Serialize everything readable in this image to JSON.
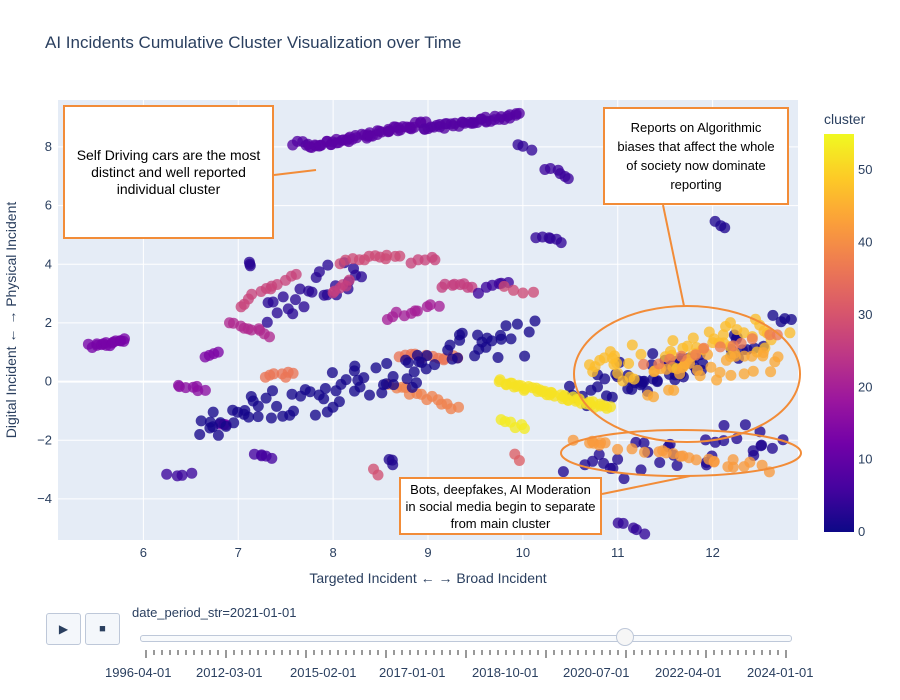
{
  "chart_data": {
    "type": "scatter",
    "title": "AI Incidents Cumulative Cluster Visualization over Time",
    "xlabel": "Targeted Incident ← → Broad Incident",
    "ylabel": "Digital Incident ← → Physical Incident",
    "xlim": [
      5.1,
      12.9
    ],
    "ylim": [
      -5.4,
      9.6
    ],
    "x_ticks": [
      6,
      7,
      8,
      9,
      10,
      11,
      12
    ],
    "y_ticks": [
      -4,
      -2,
      0,
      2,
      4,
      6,
      8
    ],
    "colorbar": {
      "title": "cluster",
      "range": [
        0,
        55
      ],
      "ticks": [
        0,
        10,
        20,
        30,
        40,
        50
      ]
    },
    "grid": true,
    "point_groups": [
      {
        "cluster": 13,
        "x": [
          5.45,
          5.8
        ],
        "y": [
          1.2,
          1.4
        ],
        "n": 16
      },
      {
        "cluster": 16,
        "x": [
          6.35,
          6.65
        ],
        "y": [
          -0.1,
          -0.3
        ],
        "n": 7
      },
      {
        "cluster": 5,
        "x": [
          6.25,
          6.5
        ],
        "y": [
          -3.1,
          -3.2
        ],
        "n": 4
      },
      {
        "cluster": 14,
        "x": [
          6.65,
          6.8
        ],
        "y": [
          0.9,
          1.0
        ],
        "n": 4
      },
      {
        "cluster": 12,
        "x": [
          6.8,
          6.85
        ],
        "y": [
          -1.4,
          -1.5
        ],
        "n": 3
      },
      {
        "cluster": 22,
        "x": [
          6.9,
          7.35
        ],
        "y": [
          2.0,
          1.6
        ],
        "n": 10
      },
      {
        "cluster": 27,
        "x": [
          7.0,
          7.6
        ],
        "y": [
          2.6,
          3.7
        ],
        "n": 12
      },
      {
        "cluster": 3,
        "x": [
          7.1,
          7.15
        ],
        "y": [
          4.05,
          3.95
        ],
        "n": 3
      },
      {
        "cluster": 6,
        "x": [
          7.2,
          7.35
        ],
        "y": [
          -2.55,
          -2.65
        ],
        "n": 5
      },
      {
        "cluster": 36,
        "x": [
          7.3,
          7.6
        ],
        "y": [
          0.2,
          0.25
        ],
        "n": 7
      },
      {
        "cluster": 8,
        "x": [
          7.55,
          7.75
        ],
        "y": [
          8.15,
          8.05
        ],
        "n": 5
      },
      {
        "cluster": 9,
        "x": [
          7.75,
          8.95
        ],
        "y": [
          8.0,
          8.8
        ],
        "n": 55
      },
      {
        "cluster": 8,
        "x": [
          8.95,
          9.95
        ],
        "y": [
          8.6,
          9.1
        ],
        "n": 40
      },
      {
        "cluster": 3,
        "x": [
          7.3,
          8.3
        ],
        "y": [
          2.5,
          3.9
        ],
        "n": 25
      },
      {
        "cluster": 28,
        "x": [
          8.1,
          8.7
        ],
        "y": [
          4.1,
          4.3
        ],
        "n": 12
      },
      {
        "cluster": 26,
        "x": [
          8.0,
          8.2
        ],
        "y": [
          3.1,
          3.4
        ],
        "n": 6
      },
      {
        "cluster": 20,
        "x": [
          8.55,
          9.1
        ],
        "y": [
          2.2,
          2.6
        ],
        "n": 10
      },
      {
        "cluster": 26,
        "x": [
          9.15,
          9.45
        ],
        "y": [
          3.25,
          3.25
        ],
        "n": 8
      },
      {
        "cluster": 27,
        "x": [
          8.8,
          9.1
        ],
        "y": [
          4.1,
          4.2
        ],
        "n": 5
      },
      {
        "cluster": 5,
        "x": [
          9.55,
          9.85
        ],
        "y": [
          3.1,
          3.4
        ],
        "n": 6
      },
      {
        "cluster": 28,
        "x": [
          9.8,
          10.1
        ],
        "y": [
          3.2,
          3.0
        ],
        "n": 4
      },
      {
        "cluster": 4,
        "x": [
          10.15,
          10.4
        ],
        "y": [
          4.95,
          4.8
        ],
        "n": 6
      },
      {
        "cluster": 5,
        "x": [
          10.25,
          10.5
        ],
        "y": [
          7.3,
          7.0
        ],
        "n": 6
      },
      {
        "cluster": 4,
        "x": [
          9.95,
          10.1
        ],
        "y": [
          8.1,
          7.9
        ],
        "n": 3
      },
      {
        "cluster": 2,
        "x": [
          12.05,
          12.15
        ],
        "y": [
          5.4,
          5.3
        ],
        "n": 3
      },
      {
        "cluster": 36,
        "x": [
          8.7,
          9.3
        ],
        "y": [
          0.9,
          0.8
        ],
        "n": 12
      },
      {
        "cluster": 38,
        "x": [
          8.6,
          9.3
        ],
        "y": [
          -0.1,
          -0.9
        ],
        "n": 14
      },
      {
        "cluster": 1,
        "x": [
          6.6,
          10.0
        ],
        "y": [
          -1.6,
          1.6
        ],
        "n": 90
      },
      {
        "cluster": 1,
        "x": [
          10.5,
          11.8
        ],
        "y": [
          -0.4,
          0.8
        ],
        "n": 30
      },
      {
        "cluster": 1,
        "x": [
          11.1,
          12.7
        ],
        "y": [
          -0.4,
          1.9
        ],
        "n": 35
      },
      {
        "cluster": 2,
        "x": [
          10.6,
          12.8
        ],
        "y": [
          -2.9,
          -1.7
        ],
        "n": 35
      },
      {
        "cluster": 52,
        "x": [
          9.75,
          10.9
        ],
        "y": [
          0.0,
          -0.9
        ],
        "n": 45
      },
      {
        "cluster": 53,
        "x": [
          9.8,
          10.0
        ],
        "y": [
          -1.3,
          -1.6
        ],
        "n": 6
      },
      {
        "cluster": 47,
        "x": [
          10.7,
          12.7
        ],
        "y": [
          0.3,
          1.8
        ],
        "n": 55
      },
      {
        "cluster": 44,
        "x": [
          11.3,
          12.7
        ],
        "y": [
          -0.2,
          1.0
        ],
        "n": 30
      },
      {
        "cluster": 42,
        "x": [
          10.5,
          12.6
        ],
        "y": [
          -2.0,
          -3.0
        ],
        "n": 28
      },
      {
        "cluster": 37,
        "x": [
          11.3,
          12.7
        ],
        "y": [
          0.6,
          1.6
        ],
        "n": 12
      },
      {
        "cluster": 4,
        "x": [
          11.0,
          11.3
        ],
        "y": [
          -4.8,
          -5.15
        ],
        "n": 5
      },
      {
        "cluster": 29,
        "x": [
          8.4,
          8.45
        ],
        "y": [
          -3.0,
          -3.1
        ],
        "n": 2
      },
      {
        "cluster": 32,
        "x": [
          9.9,
          9.95
        ],
        "y": [
          -2.5,
          -2.6
        ],
        "n": 2
      },
      {
        "cluster": 2,
        "x": [
          8.6,
          8.65
        ],
        "y": [
          -2.7,
          -2.8
        ],
        "n": 3
      }
    ],
    "annotations": [
      {
        "text": "Self Driving cars are the most distinct and well reported individual cluster"
      },
      {
        "text": "Reports on Algorithmic biases that affect the whole of society now dominate reporting"
      },
      {
        "text": "Bots, deepfakes, AI Moderation in social media begin to separate from main cluster"
      }
    ]
  },
  "slider": {
    "label": "date_period_str=2021-01-01",
    "value_fraction": 0.745,
    "ticks": [
      "1996-04-01",
      "2012-03-01",
      "2015-02-01",
      "2017-01-01",
      "2018-10-01",
      "2020-07-01",
      "2022-04-01",
      "2024-01-01"
    ]
  },
  "controls": {
    "play_icon": "▶",
    "stop_icon": "■"
  }
}
